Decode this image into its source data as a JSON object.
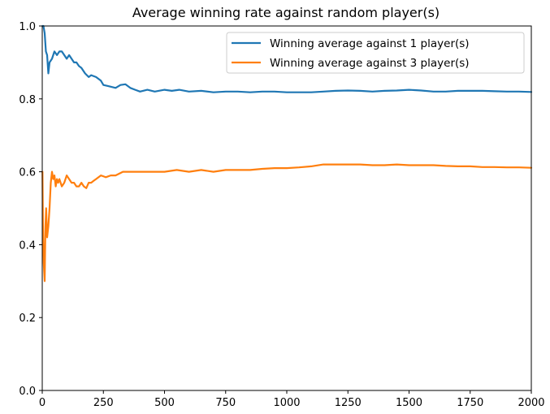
{
  "chart_data": {
    "type": "line",
    "title": "Average winning rate against random player(s)",
    "xlabel": "",
    "ylabel": "",
    "xlim": [
      0,
      2000
    ],
    "ylim": [
      0.0,
      1.0
    ],
    "xticks": [
      0,
      250,
      500,
      750,
      1000,
      1250,
      1500,
      1750,
      2000
    ],
    "yticks": [
      0.0,
      0.2,
      0.4,
      0.6,
      0.8,
      1.0
    ],
    "xtick_labels": [
      "0",
      "250",
      "500",
      "750",
      "1000",
      "1250",
      "1500",
      "1750",
      "2000"
    ],
    "ytick_labels": [
      "0.0",
      "0.2",
      "0.4",
      "0.6",
      "0.8",
      "1.0"
    ],
    "grid": false,
    "legend_position": "top-right",
    "series": [
      {
        "name": "Winning average against 1 player(s)",
        "color": "#1f77b4",
        "x": [
          1,
          5,
          10,
          15,
          20,
          25,
          30,
          40,
          50,
          60,
          70,
          80,
          90,
          100,
          110,
          120,
          130,
          140,
          150,
          160,
          175,
          190,
          200,
          220,
          240,
          250,
          270,
          300,
          320,
          340,
          360,
          380,
          400,
          430,
          460,
          500,
          530,
          560,
          600,
          650,
          700,
          750,
          800,
          850,
          900,
          950,
          1000,
          1050,
          1100,
          1150,
          1200,
          1250,
          1300,
          1350,
          1400,
          1450,
          1500,
          1550,
          1600,
          1650,
          1700,
          1750,
          1800,
          1850,
          1900,
          1950,
          2000
        ],
        "y": [
          1.0,
          1.0,
          0.98,
          0.93,
          0.92,
          0.87,
          0.9,
          0.91,
          0.93,
          0.92,
          0.93,
          0.93,
          0.92,
          0.91,
          0.92,
          0.91,
          0.9,
          0.9,
          0.89,
          0.885,
          0.87,
          0.86,
          0.865,
          0.86,
          0.85,
          0.838,
          0.835,
          0.83,
          0.838,
          0.84,
          0.83,
          0.825,
          0.82,
          0.825,
          0.82,
          0.825,
          0.822,
          0.825,
          0.82,
          0.822,
          0.818,
          0.82,
          0.82,
          0.818,
          0.82,
          0.82,
          0.818,
          0.818,
          0.818,
          0.82,
          0.822,
          0.823,
          0.822,
          0.82,
          0.822,
          0.823,
          0.825,
          0.823,
          0.82,
          0.82,
          0.822,
          0.822,
          0.822,
          0.821,
          0.82,
          0.82,
          0.819
        ]
      },
      {
        "name": "Winning average against 3 player(s)",
        "color": "#ff7f0e",
        "x": [
          1,
          3,
          6,
          10,
          13,
          16,
          20,
          25,
          30,
          35,
          40,
          45,
          50,
          55,
          60,
          65,
          70,
          80,
          90,
          100,
          110,
          120,
          130,
          140,
          150,
          160,
          170,
          180,
          190,
          200,
          210,
          220,
          240,
          260,
          280,
          300,
          330,
          360,
          400,
          450,
          500,
          550,
          600,
          650,
          700,
          750,
          800,
          850,
          900,
          950,
          1000,
          1050,
          1100,
          1150,
          1200,
          1250,
          1300,
          1350,
          1400,
          1450,
          1500,
          1550,
          1600,
          1650,
          1700,
          1750,
          1800,
          1850,
          1900,
          1950,
          2000
        ],
        "y": [
          0.6,
          0.45,
          0.35,
          0.3,
          0.45,
          0.5,
          0.42,
          0.45,
          0.5,
          0.57,
          0.6,
          0.58,
          0.59,
          0.56,
          0.58,
          0.57,
          0.58,
          0.56,
          0.57,
          0.59,
          0.58,
          0.57,
          0.57,
          0.56,
          0.56,
          0.57,
          0.56,
          0.555,
          0.57,
          0.57,
          0.575,
          0.58,
          0.59,
          0.585,
          0.59,
          0.59,
          0.6,
          0.6,
          0.6,
          0.6,
          0.6,
          0.605,
          0.6,
          0.605,
          0.6,
          0.605,
          0.605,
          0.605,
          0.608,
          0.61,
          0.61,
          0.612,
          0.615,
          0.62,
          0.62,
          0.62,
          0.62,
          0.618,
          0.618,
          0.62,
          0.618,
          0.618,
          0.618,
          0.616,
          0.615,
          0.615,
          0.613,
          0.613,
          0.612,
          0.612,
          0.611
        ]
      }
    ]
  }
}
